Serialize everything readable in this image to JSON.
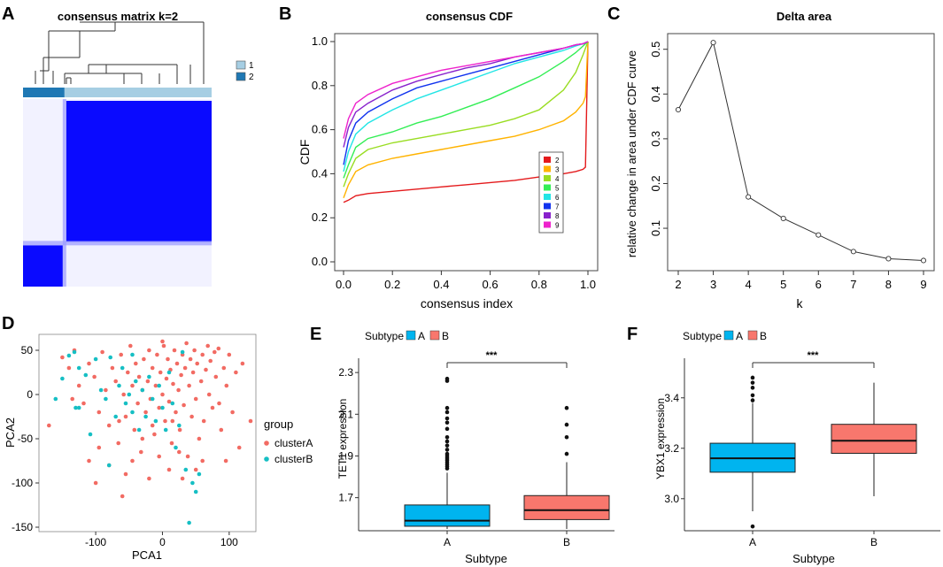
{
  "panel_labels": [
    "A",
    "B",
    "C",
    "D",
    "E",
    "F"
  ],
  "colors": {
    "matrix_blue": "#0a0aff",
    "cluster1": "#a6cee3",
    "cluster2": "#1f78b4",
    "clusterA": "#f26b63",
    "clusterB": "#16bfc4",
    "boxA": "#00b4ef",
    "boxB": "#f8776d"
  },
  "chart_data": [
    {
      "panel": "A",
      "type": "heatmap",
      "title": "consensus matrix k=2",
      "legend": [
        "1",
        "2"
      ],
      "clusters": [
        {
          "name": "2",
          "fraction": 0.22
        },
        {
          "name": "1",
          "fraction": 0.78
        }
      ]
    },
    {
      "panel": "B",
      "type": "line",
      "title": "consensus CDF",
      "xlabel": "consensus index",
      "ylabel": "CDF",
      "xlim": [
        0,
        1
      ],
      "ylim": [
        0,
        1
      ],
      "xticks": [
        "0.0",
        "0.2",
        "0.4",
        "0.6",
        "0.8",
        "1.0"
      ],
      "yticks": [
        "0.0",
        "0.2",
        "0.4",
        "0.6",
        "0.8",
        "1.0"
      ],
      "x": [
        0,
        0.02,
        0.05,
        0.1,
        0.2,
        0.3,
        0.4,
        0.5,
        0.6,
        0.7,
        0.8,
        0.9,
        0.95,
        0.98,
        0.99,
        1.0
      ],
      "series": [
        {
          "name": "2",
          "color": "#e41a1c",
          "values": [
            0.27,
            0.28,
            0.3,
            0.31,
            0.32,
            0.33,
            0.34,
            0.35,
            0.36,
            0.37,
            0.385,
            0.4,
            0.41,
            0.42,
            0.43,
            1.0
          ]
        },
        {
          "name": "3",
          "color": "#ffb300",
          "values": [
            0.29,
            0.35,
            0.41,
            0.44,
            0.47,
            0.49,
            0.51,
            0.53,
            0.55,
            0.57,
            0.6,
            0.64,
            0.68,
            0.72,
            0.75,
            1.0
          ]
        },
        {
          "name": "4",
          "color": "#99dd22",
          "values": [
            0.34,
            0.4,
            0.47,
            0.51,
            0.54,
            0.56,
            0.58,
            0.6,
            0.62,
            0.65,
            0.69,
            0.78,
            0.86,
            0.94,
            0.97,
            1.0
          ]
        },
        {
          "name": "5",
          "color": "#33ee55",
          "values": [
            0.38,
            0.44,
            0.52,
            0.56,
            0.59,
            0.63,
            0.66,
            0.7,
            0.74,
            0.79,
            0.84,
            0.91,
            0.95,
            0.98,
            0.99,
            1.0
          ]
        },
        {
          "name": "6",
          "color": "#22e5e5",
          "values": [
            0.41,
            0.5,
            0.58,
            0.63,
            0.69,
            0.74,
            0.78,
            0.82,
            0.86,
            0.9,
            0.93,
            0.96,
            0.98,
            0.99,
            0.995,
            1.0
          ]
        },
        {
          "name": "7",
          "color": "#1133ee",
          "values": [
            0.44,
            0.55,
            0.63,
            0.68,
            0.74,
            0.79,
            0.82,
            0.85,
            0.88,
            0.91,
            0.94,
            0.97,
            0.985,
            0.99,
            0.995,
            1.0
          ]
        },
        {
          "name": "8",
          "color": "#8822cc",
          "values": [
            0.52,
            0.61,
            0.68,
            0.72,
            0.78,
            0.82,
            0.85,
            0.88,
            0.9,
            0.93,
            0.95,
            0.97,
            0.985,
            0.99,
            0.995,
            1.0
          ]
        },
        {
          "name": "9",
          "color": "#ee22cc",
          "values": [
            0.56,
            0.65,
            0.72,
            0.76,
            0.81,
            0.84,
            0.87,
            0.89,
            0.91,
            0.93,
            0.95,
            0.97,
            0.985,
            0.99,
            0.995,
            1.0
          ]
        }
      ]
    },
    {
      "panel": "C",
      "type": "line",
      "title": "Delta area",
      "xlabel": "k",
      "ylabel": "relative change in area under CDF curve",
      "x": [
        2,
        3,
        4,
        5,
        6,
        7,
        8,
        9
      ],
      "values": [
        0.365,
        0.515,
        0.17,
        0.122,
        0.085,
        0.048,
        0.032,
        0.028
      ],
      "xlim": [
        2,
        9
      ],
      "ylim": [
        0.025,
        0.535
      ],
      "xticks": [
        "2",
        "3",
        "4",
        "5",
        "6",
        "7",
        "8",
        "9"
      ],
      "yticks": [
        "0.1",
        "0.2",
        "0.3",
        "0.4",
        "0.5"
      ]
    },
    {
      "panel": "D",
      "type": "scatter",
      "xlabel": "PCA1",
      "ylabel": "PCA2",
      "xlim": [
        -185,
        140
      ],
      "ylim": [
        -155,
        68
      ],
      "xticks": [
        "-100",
        "0",
        "100"
      ],
      "yticks": [
        "50",
        "0",
        "-50",
        "-100",
        "-150"
      ],
      "legend_title": "group",
      "series": [
        {
          "name": "clusterA",
          "points": [
            [
              -150,
              42
            ],
            [
              -140,
              30
            ],
            [
              -132,
              50
            ],
            [
              -125,
              10
            ],
            [
              -118,
              -10
            ],
            [
              -110,
              35
            ],
            [
              -102,
              20
            ],
            [
              -95,
              -20
            ],
            [
              -90,
              48
            ],
            [
              -85,
              5
            ],
            [
              -80,
              -35
            ],
            [
              -75,
              30
            ],
            [
              -70,
              15
            ],
            [
              -66,
              -55
            ],
            [
              -62,
              45
            ],
            [
              -58,
              0
            ],
            [
              -55,
              -25
            ],
            [
              -52,
              25
            ],
            [
              -48,
              55
            ],
            [
              -45,
              10
            ],
            [
              -42,
              -40
            ],
            [
              -40,
              35
            ],
            [
              -37,
              -10
            ],
            [
              -35,
              20
            ],
            [
              -32,
              -65
            ],
            [
              -30,
              5
            ],
            [
              -28,
              40
            ],
            [
              -25,
              -20
            ],
            [
              -22,
              15
            ],
            [
              -20,
              50
            ],
            [
              -18,
              -5
            ],
            [
              -15,
              30
            ],
            [
              -12,
              -45
            ],
            [
              -10,
              10
            ],
            [
              -8,
              45
            ],
            [
              -5,
              -15
            ],
            [
              -3,
              25
            ],
            [
              0,
              0
            ],
            [
              2,
              55
            ],
            [
              4,
              -30
            ],
            [
              6,
              18
            ],
            [
              8,
              40
            ],
            [
              10,
              -8
            ],
            [
              12,
              28
            ],
            [
              14,
              -55
            ],
            [
              16,
              12
            ],
            [
              18,
              50
            ],
            [
              20,
              -20
            ],
            [
              22,
              35
            ],
            [
              24,
              5
            ],
            [
              26,
              -40
            ],
            [
              28,
              22
            ],
            [
              30,
              45
            ],
            [
              32,
              -12
            ],
            [
              34,
              30
            ],
            [
              36,
              58
            ],
            [
              38,
              -70
            ],
            [
              40,
              10
            ],
            [
              42,
              40
            ],
            [
              44,
              -25
            ],
            [
              46,
              25
            ],
            [
              48,
              50
            ],
            [
              50,
              -5
            ],
            [
              52,
              35
            ],
            [
              55,
              -50
            ],
            [
              58,
              15
            ],
            [
              60,
              45
            ],
            [
              62,
              -30
            ],
            [
              65,
              28
            ],
            [
              68,
              55
            ],
            [
              70,
              0
            ],
            [
              72,
              38
            ],
            [
              75,
              -15
            ],
            [
              78,
              48
            ],
            [
              80,
              20
            ],
            [
              84,
              52
            ],
            [
              88,
              -40
            ],
            [
              92,
              30
            ],
            [
              96,
              10
            ],
            [
              100,
              45
            ],
            [
              105,
              -20
            ],
            [
              110,
              25
            ],
            [
              115,
              -60
            ],
            [
              120,
              35
            ],
            [
              -100,
              -100
            ],
            [
              -60,
              -115
            ],
            [
              -20,
              -95
            ],
            [
              10,
              -85
            ],
            [
              -135,
              -5
            ],
            [
              -170,
              -35
            ],
            [
              -80,
              -80
            ],
            [
              -45,
              -75
            ],
            [
              30,
              -95
            ],
            [
              0,
              60
            ],
            [
              -5,
              -70
            ],
            [
              50,
              -85
            ],
            [
              15,
              -30
            ],
            [
              -15,
              -35
            ],
            [
              85,
              -10
            ],
            [
              -65,
              -30
            ],
            [
              -30,
              -50
            ],
            [
              25,
              -65
            ],
            [
              60,
              -75
            ],
            [
              -95,
              -60
            ],
            [
              -55,
              -90
            ],
            [
              132,
              -30
            ],
            [
              -110,
              -75
            ],
            [
              95,
              -75
            ]
          ]
        },
        {
          "name": "clusterB",
          "points": [
            [
              -160,
              -5
            ],
            [
              -150,
              18
            ],
            [
              -140,
              44
            ],
            [
              -132,
              48
            ],
            [
              -125,
              -15
            ],
            [
              -115,
              22
            ],
            [
              -108,
              -45
            ],
            [
              -100,
              40
            ],
            [
              -92,
              5
            ],
            [
              -85,
              -5
            ],
            [
              -78,
              42
            ],
            [
              -70,
              -25
            ],
            [
              -65,
              10
            ],
            [
              -60,
              30
            ],
            [
              -55,
              -10
            ],
            [
              -50,
              0
            ],
            [
              -45,
              -20
            ],
            [
              -40,
              15
            ],
            [
              -35,
              -40
            ],
            [
              -30,
              5
            ],
            [
              -25,
              -25
            ],
            [
              -20,
              20
            ],
            [
              -15,
              -5
            ],
            [
              -10,
              -30
            ],
            [
              -5,
              10
            ],
            [
              0,
              -15
            ],
            [
              5,
              -40
            ],
            [
              10,
              25
            ],
            [
              15,
              -10
            ],
            [
              20,
              -60
            ],
            [
              25,
              -35
            ],
            [
              30,
              48
            ],
            [
              35,
              -85
            ],
            [
              40,
              -145
            ],
            [
              45,
              -100
            ],
            [
              50,
              -110
            ],
            [
              55,
              -90
            ],
            [
              -80,
              -80
            ],
            [
              -125,
              30
            ],
            [
              -45,
              45
            ],
            [
              -130,
              -15
            ]
          ]
        }
      ]
    },
    {
      "panel": "E",
      "type": "box",
      "legend_title": "Subtype",
      "legend": [
        "A",
        "B"
      ],
      "xlabel": "Subtype",
      "ylabel": "TET1 expression",
      "categories": [
        "A",
        "B"
      ],
      "significance": "***",
      "ylim": [
        1.55,
        2.36
      ],
      "yticks": [
        "1.7",
        "1.9",
        "2.1",
        "2.3"
      ],
      "boxes": [
        {
          "name": "A",
          "q1": 1.563,
          "median": 1.59,
          "q3": 1.665,
          "whisker_low": 1.55,
          "whisker_high": 1.82,
          "outliers": [
            1.84,
            1.85,
            1.86,
            1.87,
            1.88,
            1.89,
            1.9,
            1.91,
            1.93,
            1.95,
            1.97,
            1.99,
            2.03,
            2.06,
            2.08,
            2.11,
            2.13,
            2.26,
            2.27
          ]
        },
        {
          "name": "B",
          "q1": 1.595,
          "median": 1.64,
          "q3": 1.71,
          "whisker_low": 1.55,
          "whisker_high": 1.87,
          "outliers": [
            1.91,
            1.99,
            2.05,
            2.13
          ]
        }
      ]
    },
    {
      "panel": "F",
      "type": "box",
      "legend_title": "Subtype",
      "legend": [
        "A",
        "B"
      ],
      "xlabel": "Subtype",
      "ylabel": "YBX1 expression",
      "categories": [
        "A",
        "B"
      ],
      "significance": "***",
      "ylim": [
        2.88,
        3.55
      ],
      "yticks": [
        "3.0",
        "3.2",
        "3.4"
      ],
      "boxes": [
        {
          "name": "A",
          "q1": 3.105,
          "median": 3.16,
          "q3": 3.22,
          "whisker_low": 2.95,
          "whisker_high": 3.38,
          "outliers": [
            2.89,
            3.39,
            3.41,
            3.44,
            3.46,
            3.48
          ]
        },
        {
          "name": "B",
          "q1": 3.18,
          "median": 3.23,
          "q3": 3.295,
          "whisker_low": 3.01,
          "whisker_high": 3.46,
          "outliers": []
        }
      ]
    }
  ]
}
